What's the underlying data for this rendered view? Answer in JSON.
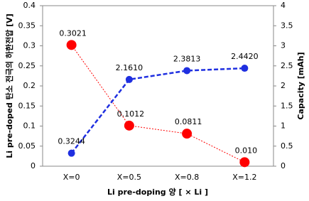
{
  "chart_data": {
    "type": "line",
    "xlabel": "Li pre-doping 양 [ × Li ]",
    "ylabel": "Li pre-doped 탄소 전극의 하한전압 [V]",
    "y2label": "Capacity [mAh]",
    "categories": [
      "X=0",
      "X=0.5",
      "X=0.8",
      "X=1.2"
    ],
    "series": [
      {
        "color": "#ff0000",
        "values": [
          0.3021,
          0.1012,
          0.0811,
          0.01
        ],
        "value_labels": [
          "0.3021",
          "0.1012",
          "0.0811",
          "0.010"
        ]
      },
      {
        "color": "#1f2fe0",
        "axis": "y2",
        "values": [
          0.3244,
          2.161,
          2.3813,
          2.442
        ],
        "value_labels": [
          "0.3244",
          "2.1610",
          "2.3813",
          "2.4420"
        ]
      }
    ],
    "ylim": [
      0,
      0.4
    ],
    "yticks": [
      0,
      0.05,
      0.1,
      0.15,
      0.2,
      0.25,
      0.3,
      0.35,
      0.4
    ],
    "y2lim": [
      0,
      4
    ],
    "y2ticks": [
      0,
      0.5,
      1,
      1.5,
      2,
      2.5,
      3,
      3.5,
      4
    ]
  }
}
